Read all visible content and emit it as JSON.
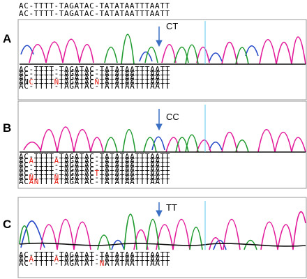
{
  "header_rows": [
    "AC-TTTT-TAGATAC-TATATAATTTAATT",
    "AC-TTTT-TAGATAC-TATATAATTTAATT"
  ],
  "panels": [
    {
      "letter": "A",
      "genotype": "CT",
      "arrow_icon": "down-arrow-icon",
      "rows": [
        "AC-TTTT-TAGATAC-TATATAATTTAATT",
        "AC-TTTT-TAGATAC-TATATAATTTAATT",
        "AC-TTTT-TAGATAC-TATATAATTTAATT",
        "ANCTTTTNTAGATACNTATATAATTTAATT",
        "AC-TTTT-TAGATAC-TATATAATTTAATT"
      ],
      "red_positions": [
        [],
        [],
        [],
        [
          2,
          7,
          15
        ],
        []
      ]
    },
    {
      "letter": "B",
      "genotype": "CC",
      "arrow_icon": "down-arrow-icon",
      "rows": [
        "AC-TTTT-TAGATAC-TATATAATTTAATT",
        "ACATTTTATAGATAC-TATATAATTTAATT",
        "AC-TTTT-TAGATAC-TATATAATTTAATT",
        "AC-TTTT-TAGATAC-TATATAATTTAATT",
        "AC-TTTT-TAGATACTTATATAATTTAATT",
        "ACNTTTTNTAGATAC-TATATAATTTAATT",
        "ACANTTTATAGATAC-TATATAATTTAATT"
      ],
      "red_positions": [
        [],
        [
          2,
          7
        ],
        [],
        [],
        [
          15
        ],
        [
          2,
          7
        ],
        [
          2,
          3,
          7
        ]
      ]
    },
    {
      "letter": "C",
      "genotype": "TT",
      "arrow_icon": "down-arrow-icon",
      "rows": [
        "AC-TTTT-TAGATAT-TATATAATTTAATT",
        "ACATTTTATAGATAT-TATATAATTTAATT",
        "AC-TTTT-TAGATAT-NATATAATTTAATT"
      ],
      "red_positions": [
        [],
        [
          2,
          7
        ],
        [
          16
        ]
      ]
    }
  ],
  "colors": {
    "A_trace": "#1e9a2e",
    "C_trace": "#2448c8",
    "G_trace": "#111111",
    "T_trace": "#e21a9a",
    "cursor_line": "#5bc8f0",
    "arrow": "#3a6fc4",
    "mismatch_text": "#e5241b",
    "panel_border": "#888888"
  }
}
